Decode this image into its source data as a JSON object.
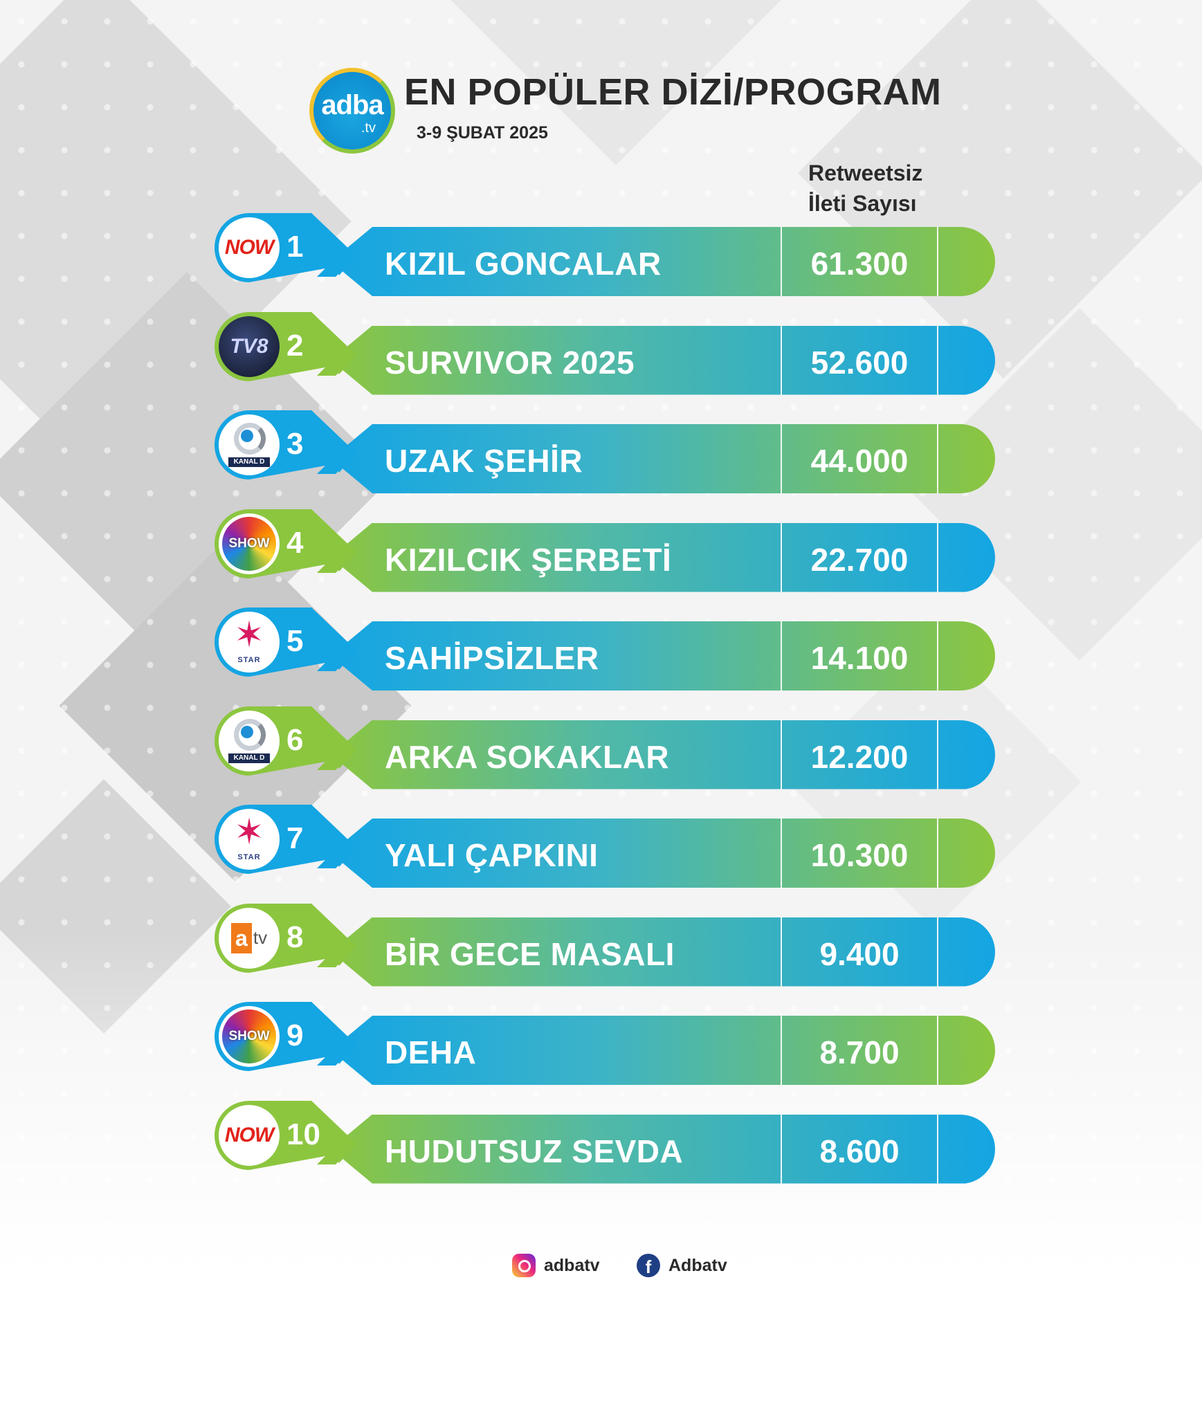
{
  "header": {
    "logo_main": "adba",
    "logo_sub": ".tv",
    "title": "EN POPÜLER DİZİ/PROGRAM",
    "subtitle": "3-9 ŞUBAT 2025",
    "column_header_line1": "Retweetsiz",
    "column_header_line2": "İleti Sayısı"
  },
  "colors": {
    "blue": "#14a5e3",
    "green": "#8cc63f"
  },
  "rows": [
    {
      "rank": "1",
      "channel": "NOW",
      "channel_icon": "now-logo-icon",
      "name": "KIZIL GONCALAR",
      "count": "61.300"
    },
    {
      "rank": "2",
      "channel": "TV8",
      "channel_icon": "tv8-logo-icon",
      "name": "SURVIVOR 2025",
      "count": "52.600"
    },
    {
      "rank": "3",
      "channel": "KANAL D",
      "channel_icon": "kanal-d-logo-icon",
      "name": "UZAK ŞEHİR",
      "count": "44.000"
    },
    {
      "rank": "4",
      "channel": "SHOW",
      "channel_icon": "show-tv-logo-icon",
      "name": "KIZILCIK ŞERBETİ",
      "count": "22.700"
    },
    {
      "rank": "5",
      "channel": "STAR",
      "channel_icon": "star-tv-logo-icon",
      "name": "SAHİPSİZLER",
      "count": "14.100"
    },
    {
      "rank": "6",
      "channel": "KANAL D",
      "channel_icon": "kanal-d-logo-icon",
      "name": "ARKA SOKAKLAR",
      "count": "12.200"
    },
    {
      "rank": "7",
      "channel": "STAR",
      "channel_icon": "star-tv-logo-icon",
      "name": "YALI ÇAPKINI",
      "count": "10.300"
    },
    {
      "rank": "8",
      "channel": "atv",
      "channel_icon": "atv-logo-icon",
      "name": "BİR GECE MASALI",
      "count": "9.400"
    },
    {
      "rank": "9",
      "channel": "SHOW",
      "channel_icon": "show-tv-logo-icon",
      "name": "DEHA",
      "count": "8.700"
    },
    {
      "rank": "10",
      "channel": "NOW",
      "channel_icon": "now-logo-icon",
      "name": "HUDUTSUZ SEVDA",
      "count": "8.600"
    }
  ],
  "footer": {
    "instagram": "adbatv",
    "facebook": "Adbatv",
    "instagram_icon": "instagram-icon",
    "facebook_icon": "facebook-icon"
  }
}
